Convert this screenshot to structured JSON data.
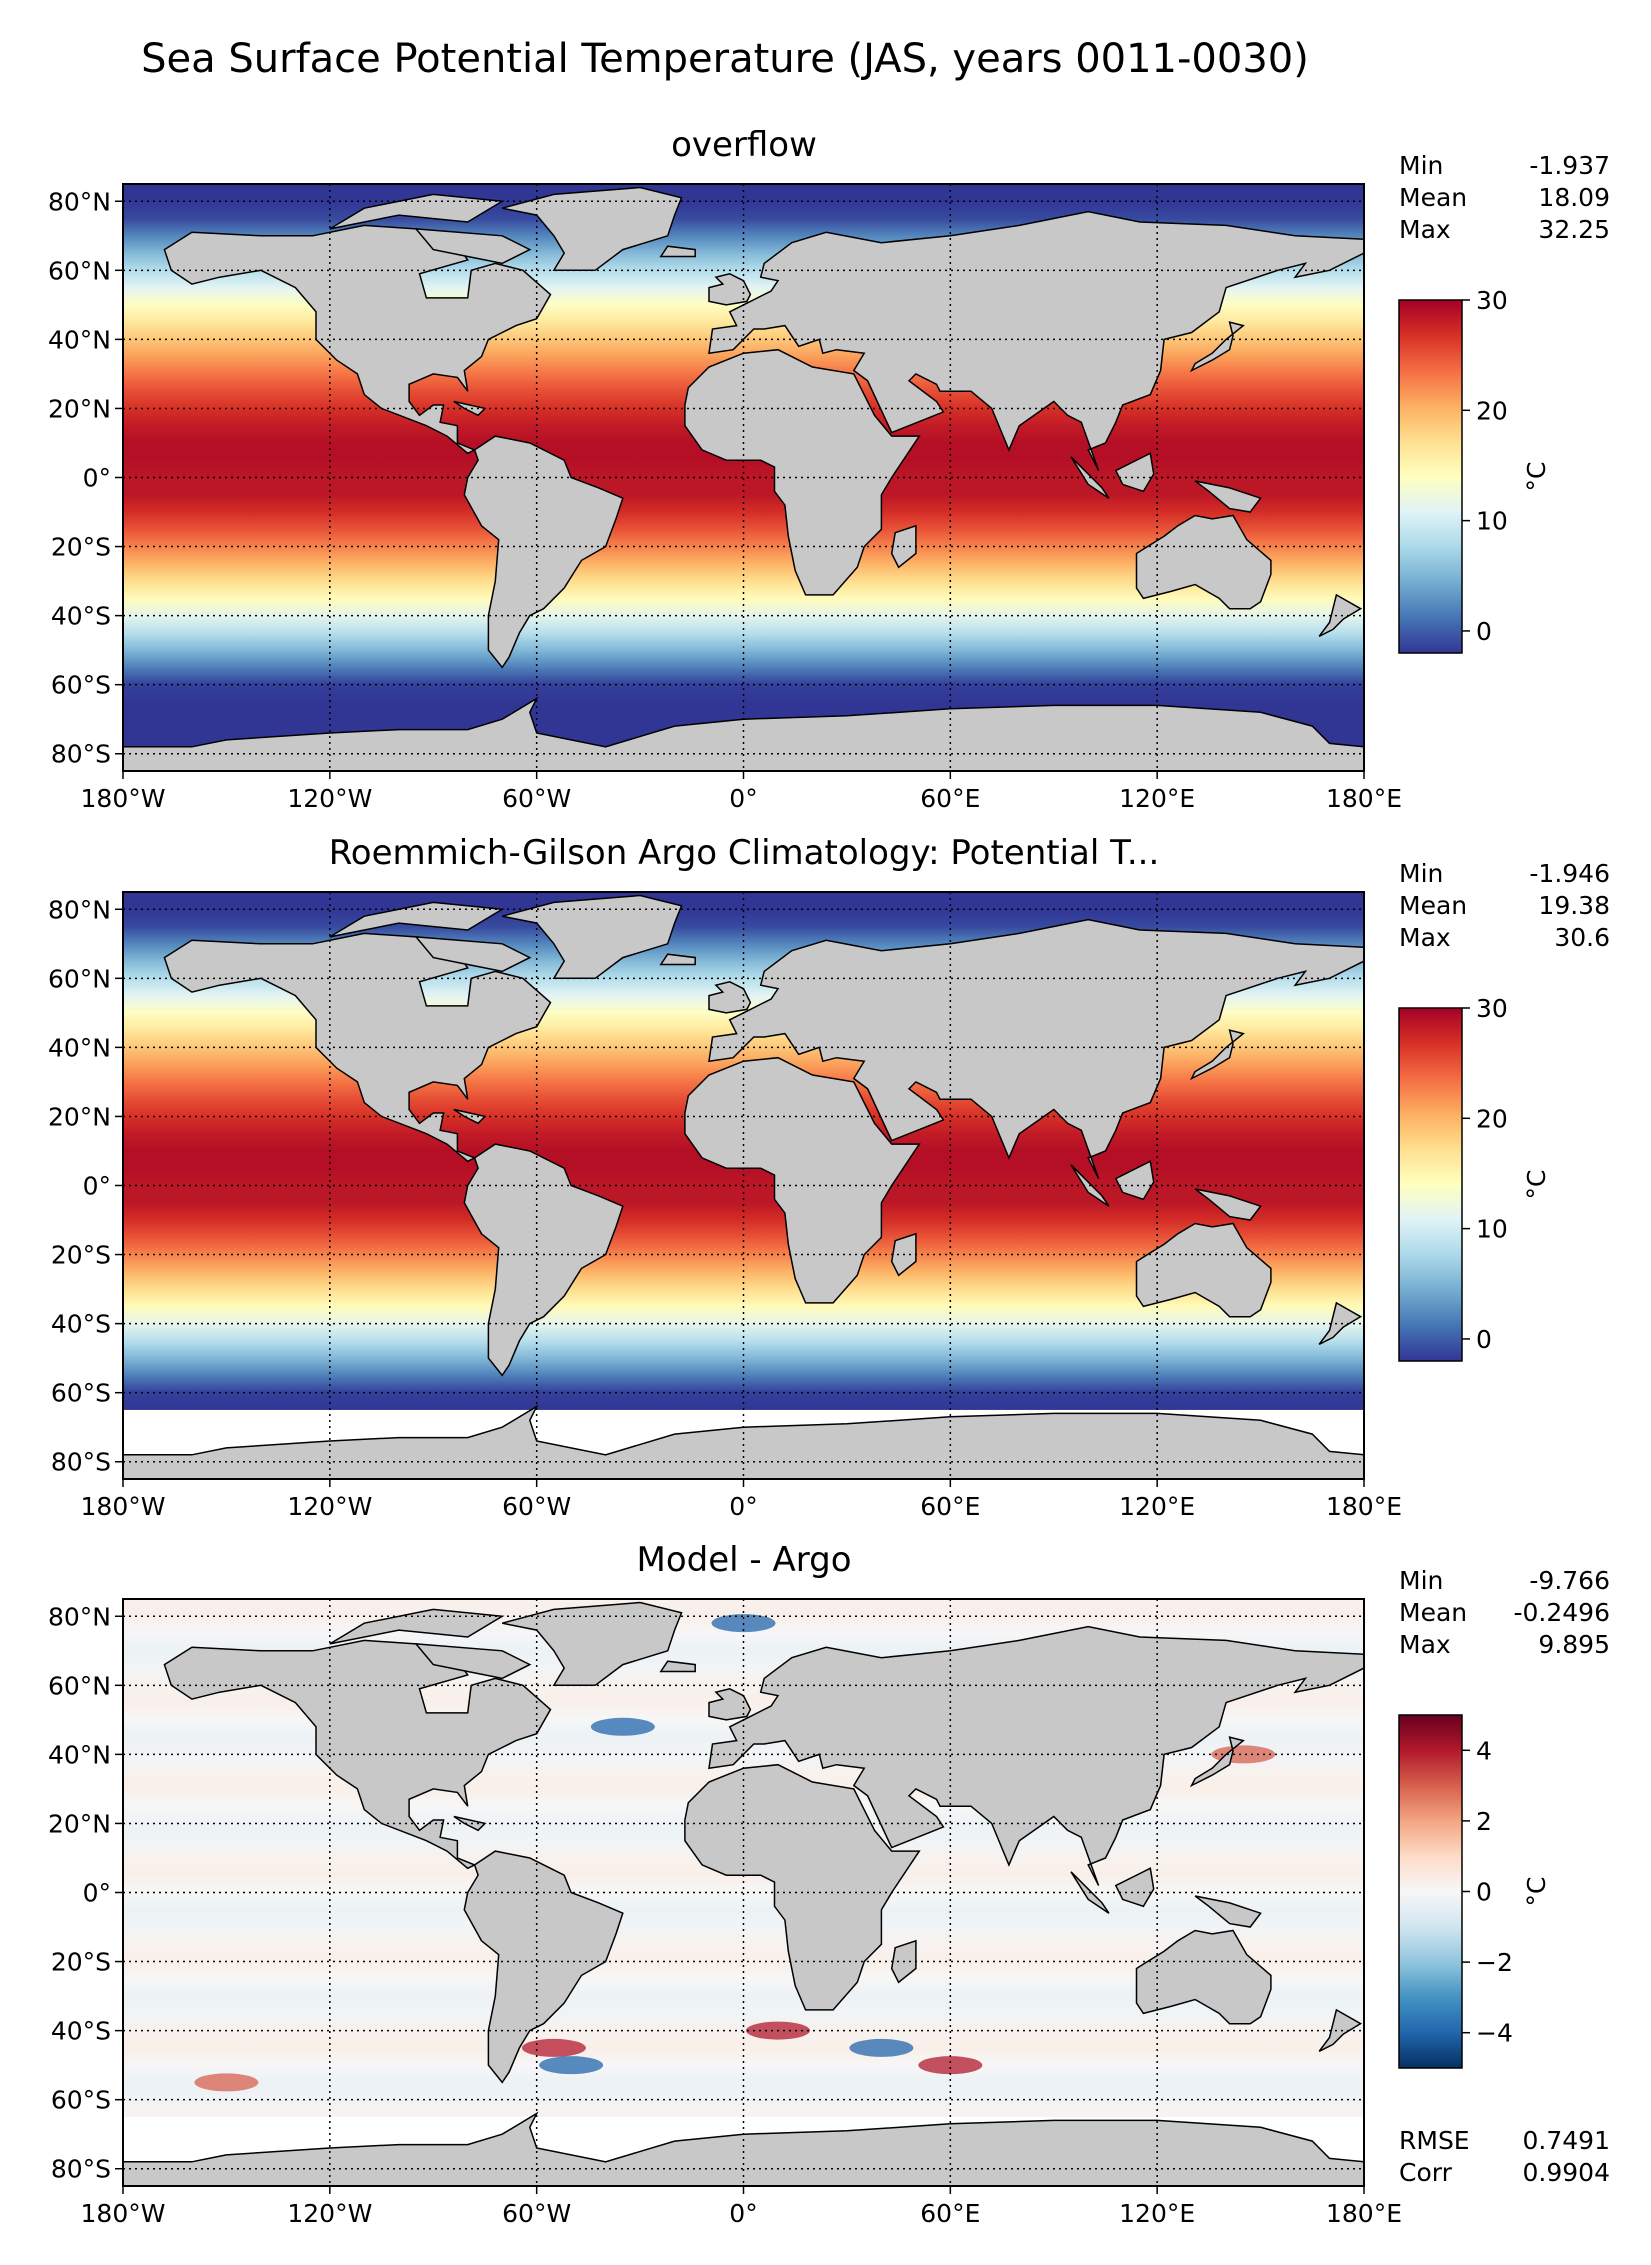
{
  "figure": {
    "title": "Sea Surface Potential Temperature (JAS, years 0011-0030)"
  },
  "colors": {
    "land": "#c8c8c8",
    "missing": "#ffffff",
    "frame": "#000000",
    "grid": "#000000"
  },
  "chart_data": [
    {
      "type": "heatmap",
      "title": "overflow",
      "xlim": [
        -180,
        180
      ],
      "ylim": [
        -85,
        85
      ],
      "x_ticks": [
        -180,
        -120,
        -60,
        0,
        60,
        120,
        180
      ],
      "x_tick_labels": [
        "180°W",
        "120°W",
        "60°W",
        "0°",
        "60°E",
        "120°E",
        "180°E"
      ],
      "y_ticks": [
        80,
        60,
        40,
        20,
        0,
        -20,
        -40,
        -60,
        -80
      ],
      "y_tick_labels": [
        "80°N",
        "60°N",
        "40°N",
        "20°N",
        "0°",
        "20°S",
        "40°S",
        "60°S",
        "80°S"
      ],
      "grid": true,
      "colormap": "RdYlBu_r",
      "colorbar": {
        "label": "°C",
        "range": [
          -2,
          30
        ],
        "ticks": [
          0,
          10,
          20,
          30
        ],
        "tick_labels": [
          "0",
          "10",
          "20",
          "30"
        ]
      },
      "field": "sst",
      "data_coverage": {
        "south_lat": -90
      },
      "stats": [
        {
          "label": "Min",
          "value": "-1.937"
        },
        {
          "label": "Mean",
          "value": "18.09"
        },
        {
          "label": "Max",
          "value": "32.25"
        }
      ]
    },
    {
      "type": "heatmap",
      "title": "Roemmich-Gilson Argo Climatology: Potential T...",
      "xlim": [
        -180,
        180
      ],
      "ylim": [
        -85,
        85
      ],
      "x_ticks": [
        -180,
        -120,
        -60,
        0,
        60,
        120,
        180
      ],
      "x_tick_labels": [
        "180°W",
        "120°W",
        "60°W",
        "0°",
        "60°E",
        "120°E",
        "180°E"
      ],
      "y_ticks": [
        80,
        60,
        40,
        20,
        0,
        -20,
        -40,
        -60,
        -80
      ],
      "y_tick_labels": [
        "80°N",
        "60°N",
        "40°N",
        "20°N",
        "0°",
        "20°S",
        "40°S",
        "60°S",
        "80°S"
      ],
      "grid": true,
      "colormap": "RdYlBu_r",
      "colorbar": {
        "label": "°C",
        "range": [
          -2,
          30
        ],
        "ticks": [
          0,
          10,
          20,
          30
        ],
        "tick_labels": [
          "0",
          "10",
          "20",
          "30"
        ]
      },
      "field": "sst",
      "data_coverage": {
        "south_lat": -65
      },
      "stats": [
        {
          "label": "Min",
          "value": "-1.946"
        },
        {
          "label": "Mean",
          "value": "19.38"
        },
        {
          "label": "Max",
          "value": "30.6"
        }
      ]
    },
    {
      "type": "heatmap",
      "title": "Model - Argo",
      "xlim": [
        -180,
        180
      ],
      "ylim": [
        -85,
        85
      ],
      "x_ticks": [
        -180,
        -120,
        -60,
        0,
        60,
        120,
        180
      ],
      "x_tick_labels": [
        "180°W",
        "120°W",
        "60°W",
        "0°",
        "60°E",
        "120°E",
        "180°E"
      ],
      "y_ticks": [
        80,
        60,
        40,
        20,
        0,
        -20,
        -40,
        -60,
        -80
      ],
      "y_tick_labels": [
        "80°N",
        "60°N",
        "40°N",
        "20°N",
        "0°",
        "20°S",
        "40°S",
        "60°S",
        "80°S"
      ],
      "grid": true,
      "colormap": "RdBu_r",
      "colorbar": {
        "label": "°C",
        "range": [
          -5,
          5
        ],
        "ticks": [
          4,
          2,
          0,
          -2,
          -4
        ],
        "tick_labels": [
          "4",
          "2",
          "0",
          "−2",
          "−4"
        ]
      },
      "field": "diff",
      "data_coverage": {
        "south_lat": -65
      },
      "stats": [
        {
          "label": "Min",
          "value": "-9.766"
        },
        {
          "label": "Mean",
          "value": "-0.2496"
        },
        {
          "label": "Max",
          "value": "9.895"
        }
      ],
      "metrics": [
        {
          "label": "RMSE",
          "value": "0.7491"
        },
        {
          "label": "Corr",
          "value": "0.9904"
        }
      ]
    }
  ]
}
